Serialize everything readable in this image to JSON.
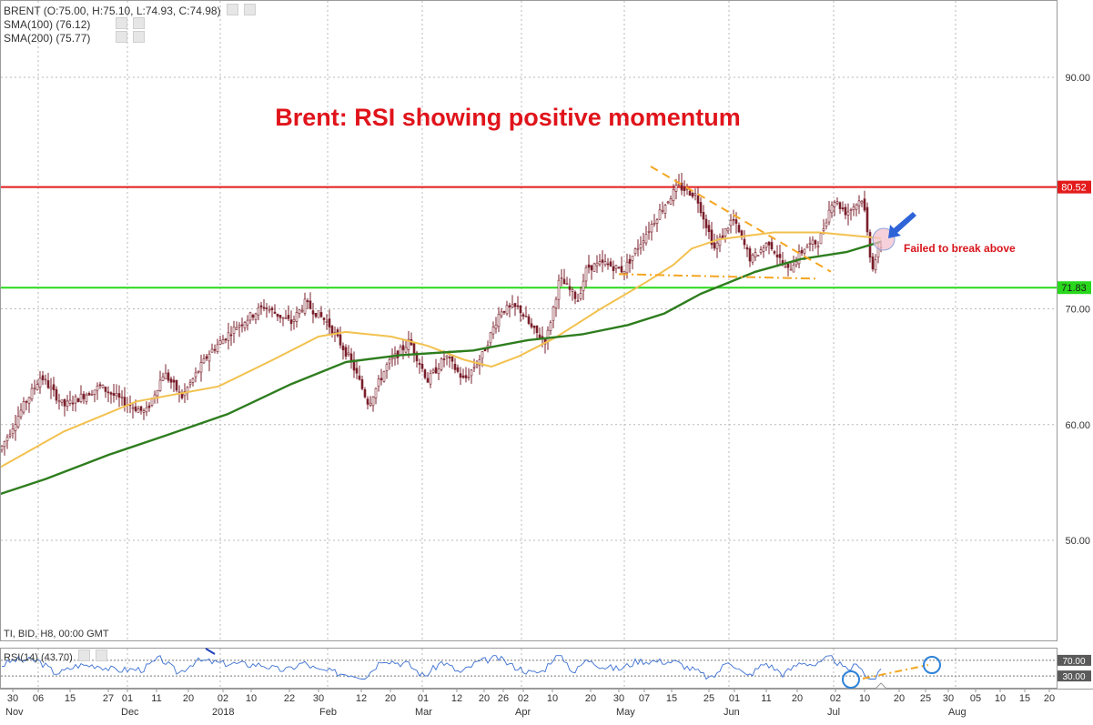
{
  "colors": {
    "background": "#ffffff",
    "grid": "#b9b9b9",
    "candle": "#7a1f2b",
    "sma100": "#f2c14e",
    "sma200": "#2e7d1e",
    "resistance": "#e31b1b",
    "support": "#29d81d",
    "trendline": "#f5a623",
    "title": "#e0141b",
    "annotation": "#d7141b",
    "arrow": "#2f64d8",
    "rsi": "#3a6fd1",
    "circle": "#2f82d8"
  },
  "header": {
    "price_line": "BRENT (O:75.00, H:75.10, L:74.93, C:74.98)",
    "sma100": "SMA(100) (76.12)",
    "sma200": "SMA(200) (75.77)"
  },
  "footer_info": "TI, BID, H8, 00:00 GMT",
  "rsi_panel": {
    "label": "RSI(14) (43.70)",
    "levels": [
      "70.00",
      "30.00"
    ]
  },
  "chart_data": {
    "type": "candlestick",
    "title": "Brent: RSI showing positive momentum",
    "annotation": "Failed to break above",
    "y_ticks": [
      "90.00",
      "70.00",
      "60.00",
      "50.00"
    ],
    "ylim": [
      41.5,
      96.5
    ],
    "x_day_ticks": [
      "30",
      "06",
      "15",
      "27",
      "01",
      "11",
      "20",
      "02",
      "10",
      "22",
      "30",
      "12",
      "20",
      "01",
      "12",
      "20",
      "26",
      "02",
      "10",
      "20",
      "30",
      "07",
      "15",
      "25",
      "01",
      "11",
      "20",
      "02",
      "10",
      "20",
      "25",
      "30",
      "05",
      "10",
      "15",
      "20"
    ],
    "x_month_ticks": [
      "Nov",
      "Dec",
      "2018",
      "Feb",
      "Mar",
      "Apr",
      "May",
      "Jun",
      "Jul",
      "Aug"
    ],
    "levels": [
      {
        "label": "80.52",
        "value": 80.52,
        "color": "#e31b1b"
      },
      {
        "label": "71.83",
        "value": 71.83,
        "color": "#29d81d"
      }
    ],
    "price_path": [
      [
        0,
        57.8
      ],
      [
        25,
        61.5
      ],
      [
        45,
        64.2
      ],
      [
        70,
        61.6
      ],
      [
        110,
        63.3
      ],
      [
        135,
        62.0
      ],
      [
        160,
        61.0
      ],
      [
        180,
        64.5
      ],
      [
        200,
        62.4
      ],
      [
        230,
        66.2
      ],
      [
        260,
        68.5
      ],
      [
        290,
        70.2
      ],
      [
        320,
        68.8
      ],
      [
        335,
        70.5
      ],
      [
        360,
        68.8
      ],
      [
        385,
        65.6
      ],
      [
        405,
        61.8
      ],
      [
        425,
        65.1
      ],
      [
        450,
        67.2
      ],
      [
        470,
        63.8
      ],
      [
        490,
        65.9
      ],
      [
        510,
        63.8
      ],
      [
        530,
        66.0
      ],
      [
        550,
        69.9
      ],
      [
        570,
        70.1
      ],
      [
        585,
        68.2
      ],
      [
        600,
        67.2
      ],
      [
        615,
        72.6
      ],
      [
        635,
        70.8
      ],
      [
        645,
        73.6
      ],
      [
        665,
        73.9
      ],
      [
        685,
        73.3
      ],
      [
        705,
        75.9
      ],
      [
        725,
        78.4
      ],
      [
        745,
        80.6
      ],
      [
        765,
        79.8
      ],
      [
        785,
        75.2
      ],
      [
        805,
        77.8
      ],
      [
        825,
        74.2
      ],
      [
        845,
        75.8
      ],
      [
        865,
        73.2
      ],
      [
        885,
        75.4
      ],
      [
        900,
        75.8
      ],
      [
        915,
        79.5
      ],
      [
        930,
        78.3
      ],
      [
        948,
        79.6
      ],
      [
        958,
        73.5
      ],
      [
        968,
        75.5
      ]
    ],
    "series": [
      {
        "name": "SMA(100) (76.12)",
        "color": "#f2c14e",
        "points": [
          [
            0,
            56.3
          ],
          [
            70,
            59.4
          ],
          [
            150,
            62.0
          ],
          [
            240,
            63.3
          ],
          [
            300,
            65.6
          ],
          [
            350,
            67.6
          ],
          [
            380,
            68.0
          ],
          [
            430,
            67.6
          ],
          [
            470,
            66.8
          ],
          [
            510,
            65.6
          ],
          [
            540,
            65.0
          ],
          [
            570,
            65.9
          ],
          [
            610,
            67.5
          ],
          [
            660,
            70.0
          ],
          [
            710,
            72.3
          ],
          [
            740,
            73.8
          ],
          [
            760,
            75.2
          ],
          [
            790,
            76.0
          ],
          [
            850,
            76.6
          ],
          [
            900,
            76.6
          ],
          [
            968,
            76.1
          ]
        ]
      },
      {
        "name": "SMA(200) (75.77)",
        "color": "#2e7d1e",
        "points": [
          [
            0,
            54.0
          ],
          [
            50,
            55.3
          ],
          [
            120,
            57.4
          ],
          [
            180,
            59.0
          ],
          [
            250,
            60.9
          ],
          [
            320,
            63.5
          ],
          [
            380,
            65.4
          ],
          [
            440,
            66.0
          ],
          [
            520,
            66.4
          ],
          [
            580,
            67.3
          ],
          [
            640,
            67.8
          ],
          [
            690,
            68.6
          ],
          [
            730,
            69.6
          ],
          [
            770,
            71.3
          ],
          [
            830,
            73.2
          ],
          [
            880,
            74.3
          ],
          [
            930,
            74.9
          ],
          [
            968,
            75.8
          ]
        ]
      }
    ],
    "trendlines": [
      {
        "points": [
          [
            715,
            82.3
          ],
          [
            913,
            73.2
          ]
        ],
        "style": "dashed"
      },
      {
        "points": [
          [
            680,
            73.0
          ],
          [
            900,
            72.6
          ]
        ],
        "style": "dashdot"
      }
    ],
    "rsi": {
      "ylim": [
        0,
        100
      ],
      "overbought": 70,
      "oversold": 30
    }
  }
}
